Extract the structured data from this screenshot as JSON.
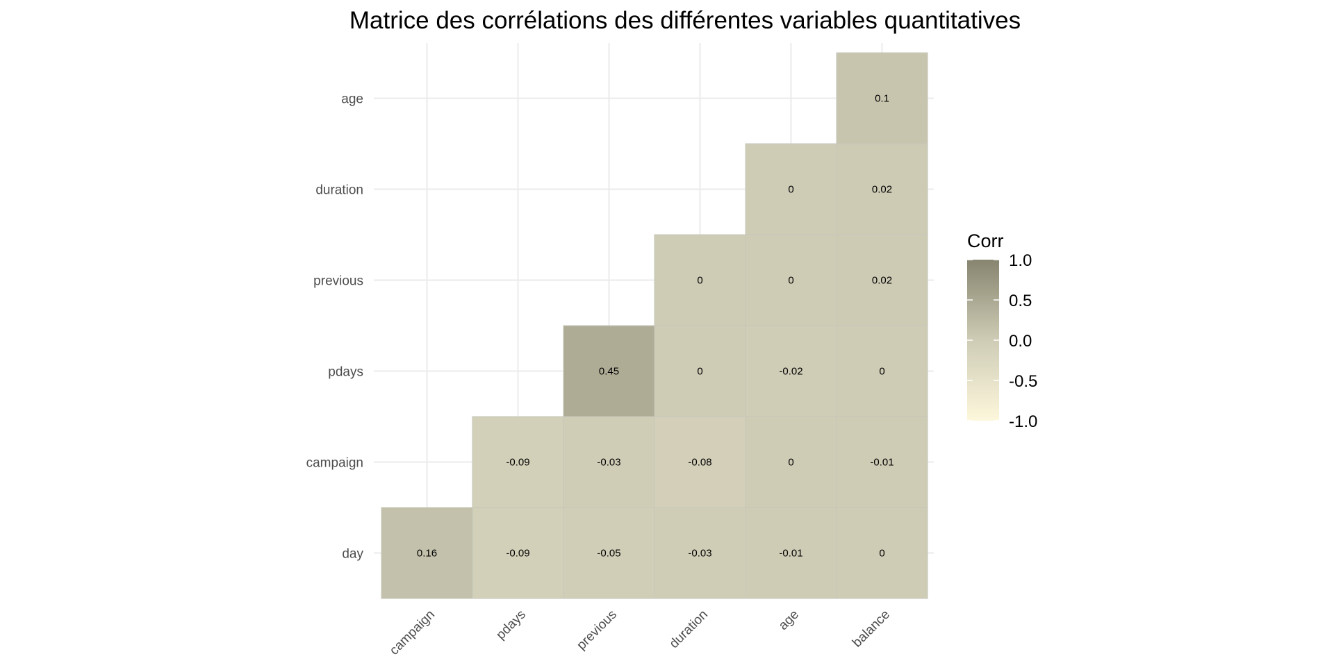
{
  "chart_data": {
    "type": "heatmap",
    "title": "Matrice des corrélations des différentes variables quantitatives",
    "x_categories": [
      "campaign",
      "pdays",
      "previous",
      "duration",
      "age",
      "balance"
    ],
    "y_categories": [
      "age",
      "duration",
      "previous",
      "pdays",
      "campaign",
      "day"
    ],
    "cells": [
      {
        "x": "balance",
        "y": "age",
        "value": 0.1,
        "label": "0.1"
      },
      {
        "x": "age",
        "y": "duration",
        "value": 0,
        "label": "0"
      },
      {
        "x": "balance",
        "y": "duration",
        "value": 0.02,
        "label": "0.02"
      },
      {
        "x": "duration",
        "y": "previous",
        "value": 0,
        "label": "0"
      },
      {
        "x": "age",
        "y": "previous",
        "value": 0,
        "label": "0"
      },
      {
        "x": "balance",
        "y": "previous",
        "value": 0.02,
        "label": "0.02"
      },
      {
        "x": "previous",
        "y": "pdays",
        "value": 0.45,
        "label": "0.45"
      },
      {
        "x": "duration",
        "y": "pdays",
        "value": 0,
        "label": "0"
      },
      {
        "x": "age",
        "y": "pdays",
        "value": -0.02,
        "label": "-0.02"
      },
      {
        "x": "balance",
        "y": "pdays",
        "value": 0,
        "label": "0"
      },
      {
        "x": "pdays",
        "y": "campaign",
        "value": -0.09,
        "label": "-0.09"
      },
      {
        "x": "previous",
        "y": "campaign",
        "value": -0.03,
        "label": "-0.03"
      },
      {
        "x": "duration",
        "y": "campaign",
        "value": -0.08,
        "label": "-0.08"
      },
      {
        "x": "age",
        "y": "campaign",
        "value": 0,
        "label": "0"
      },
      {
        "x": "balance",
        "y": "campaign",
        "value": -0.01,
        "label": "-0.01"
      },
      {
        "x": "campaign",
        "y": "day",
        "value": 0.16,
        "label": "0.16"
      },
      {
        "x": "pdays",
        "y": "day",
        "value": -0.09,
        "label": "-0.09"
      },
      {
        "x": "previous",
        "y": "day",
        "value": -0.05,
        "label": "-0.05"
      },
      {
        "x": "duration",
        "y": "day",
        "value": -0.03,
        "label": "-0.03"
      },
      {
        "x": "age",
        "y": "day",
        "value": -0.01,
        "label": "-0.01"
      },
      {
        "x": "balance",
        "y": "day",
        "value": 0,
        "label": "0"
      }
    ],
    "color_scale": {
      "low": "#fdf7dc",
      "mid": "#cfccb6",
      "high": "#87856f",
      "domain": [
        -1,
        1
      ]
    },
    "legend": {
      "title": "Corr",
      "ticks": [
        1.0,
        0.5,
        0.0,
        -0.5,
        -1.0
      ],
      "tick_labels": [
        "1.0",
        "0.5",
        "0.0",
        "-0.5",
        "-1.0"
      ],
      "placement": "right"
    },
    "grid": true
  }
}
